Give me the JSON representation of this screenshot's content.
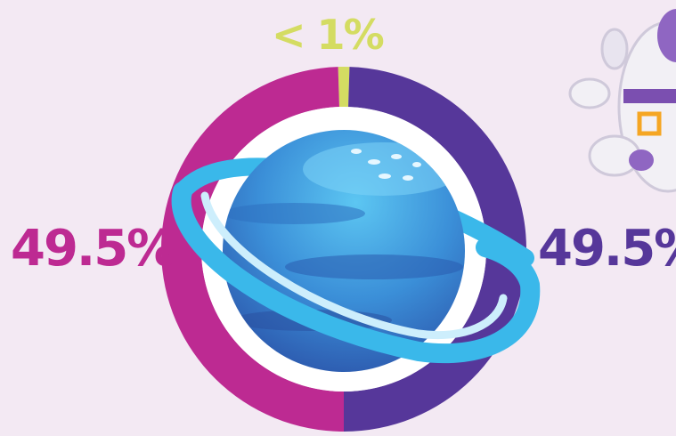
{
  "chart_data": {
    "type": "pie",
    "variant": "donut",
    "slices": [
      {
        "label": "< 1%",
        "value": 1,
        "color": "#d4dc62"
      },
      {
        "label": "49.5%",
        "value": 49.5,
        "color": "#56379a"
      },
      {
        "label": "49.5%",
        "value": 49.5,
        "color": "#bd2a92"
      }
    ],
    "start": "top, clockwise"
  },
  "colors": {
    "background": "#f3e9f3",
    "ring_inner": "#ffffff",
    "planet_dark": "#2f63b6",
    "planet_light": "#4aa8e6",
    "planet_ring": "#3ab8ea"
  },
  "icons": {
    "center": "planet-icon",
    "corner": "astronaut-icon"
  }
}
